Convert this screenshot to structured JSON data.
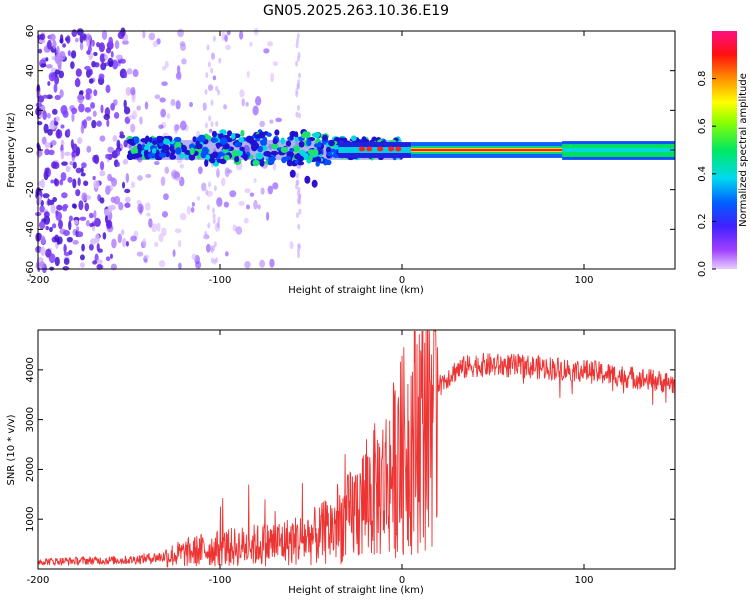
{
  "title": "GN05.2025.263.10.36.E19",
  "chart_data": [
    {
      "type": "heatmap",
      "name": "spectrogram",
      "xlabel": "Height of straight line (km)",
      "ylabel": "Frequency (Hz)",
      "xlim": [
        -200,
        150
      ],
      "ylim": [
        -60,
        60
      ],
      "x_ticks": [
        -200,
        -100,
        0,
        100
      ],
      "y_ticks": [
        -60,
        -40,
        -20,
        0,
        20,
        40,
        60
      ],
      "colorbar": {
        "label": "Normalized spectral amplitude",
        "range": [
          0,
          1
        ],
        "ticks": [
          0.0,
          0.2,
          0.4,
          0.6,
          0.8
        ]
      },
      "features": [
        {
          "desc": "scattered low-amplitude purple noise",
          "x_range": [
            -200,
            -60
          ],
          "y_range": [
            -60,
            60
          ]
        },
        {
          "desc": "clustered green/cyan band",
          "x_range": [
            -150,
            -20
          ],
          "y_range": [
            -8,
            10
          ]
        },
        {
          "desc": "narrow red/yellow carrier line",
          "x_range": [
            5,
            90
          ],
          "y_center": 0
        },
        {
          "desc": "green band",
          "x_range": [
            90,
            150
          ],
          "y_range": [
            -5,
            4
          ]
        }
      ]
    },
    {
      "type": "line",
      "name": "snr",
      "xlabel": "Height of straight line (km)",
      "ylabel": "SNR (10 * v/v)",
      "xlim": [
        -200,
        150
      ],
      "ylim": [
        0,
        4800
      ],
      "x_ticks": [
        -200,
        -100,
        0,
        100
      ],
      "y_ticks": [
        1000,
        2000,
        3000,
        4000
      ],
      "color": "#ee3333",
      "trend": {
        "x": [
          -200,
          -150,
          -130,
          -110,
          -90,
          -75,
          -60,
          -45,
          -30,
          -20,
          -10,
          0,
          10,
          20,
          30,
          40,
          60,
          80,
          100,
          120,
          140,
          150
        ],
        "y": [
          150,
          180,
          250,
          380,
          450,
          500,
          560,
          680,
          1000,
          1400,
          1700,
          2300,
          3000,
          3700,
          4000,
          4100,
          4080,
          4040,
          3980,
          3880,
          3780,
          3720
        ]
      }
    }
  ]
}
